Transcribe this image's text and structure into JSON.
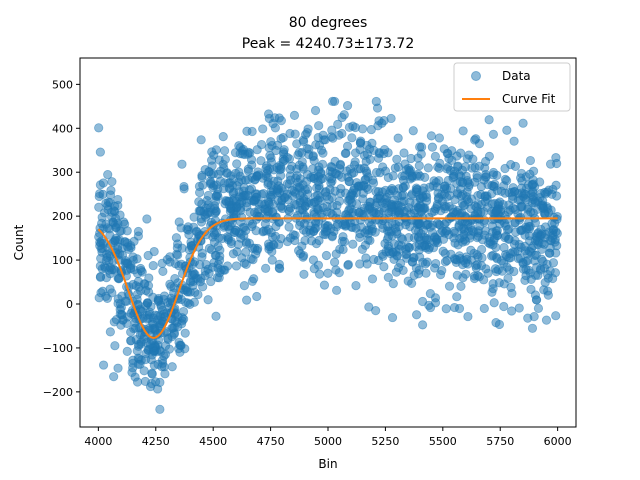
{
  "chart_data": {
    "type": "scatter",
    "title": "80 degrees",
    "subtitle": "Peak = 4240.73±173.72",
    "xlabel": "Bin",
    "ylabel": "Count",
    "xlim": [
      3920,
      6080
    ],
    "ylim": [
      -280,
      560
    ],
    "xticks": [
      4000,
      4250,
      4500,
      4750,
      5000,
      5250,
      5500,
      5750,
      6000
    ],
    "yticks": [
      -200,
      -100,
      0,
      100,
      200,
      300,
      400,
      500
    ],
    "xtick_labels": [
      "4000",
      "4250",
      "4500",
      "4750",
      "5000",
      "5250",
      "5500",
      "5750",
      "6000"
    ],
    "ytick_labels": [
      "−200",
      "−100",
      "0",
      "100",
      "200",
      "300",
      "400",
      "500"
    ],
    "grid": false,
    "legend": {
      "position": "top-right",
      "entries": [
        "Data",
        "Curve Fit"
      ]
    },
    "series": [
      {
        "name": "Data",
        "kind": "scatter",
        "color": "#1f77b4",
        "alpha": 0.5,
        "n_points": 2000,
        "x_range": [
          4000,
          6000
        ],
        "note_shape": "noisy baseline ~195 with gaussian dip near 4240 down to about -80; std ~85"
      },
      {
        "name": "Curve Fit",
        "kind": "line",
        "color": "#ff7f0e",
        "model": "gaussian_dip",
        "baseline": 195,
        "amplitude": -272,
        "center": 4240.73,
        "sigma": 110,
        "x_range": [
          4000,
          6000
        ]
      }
    ]
  }
}
